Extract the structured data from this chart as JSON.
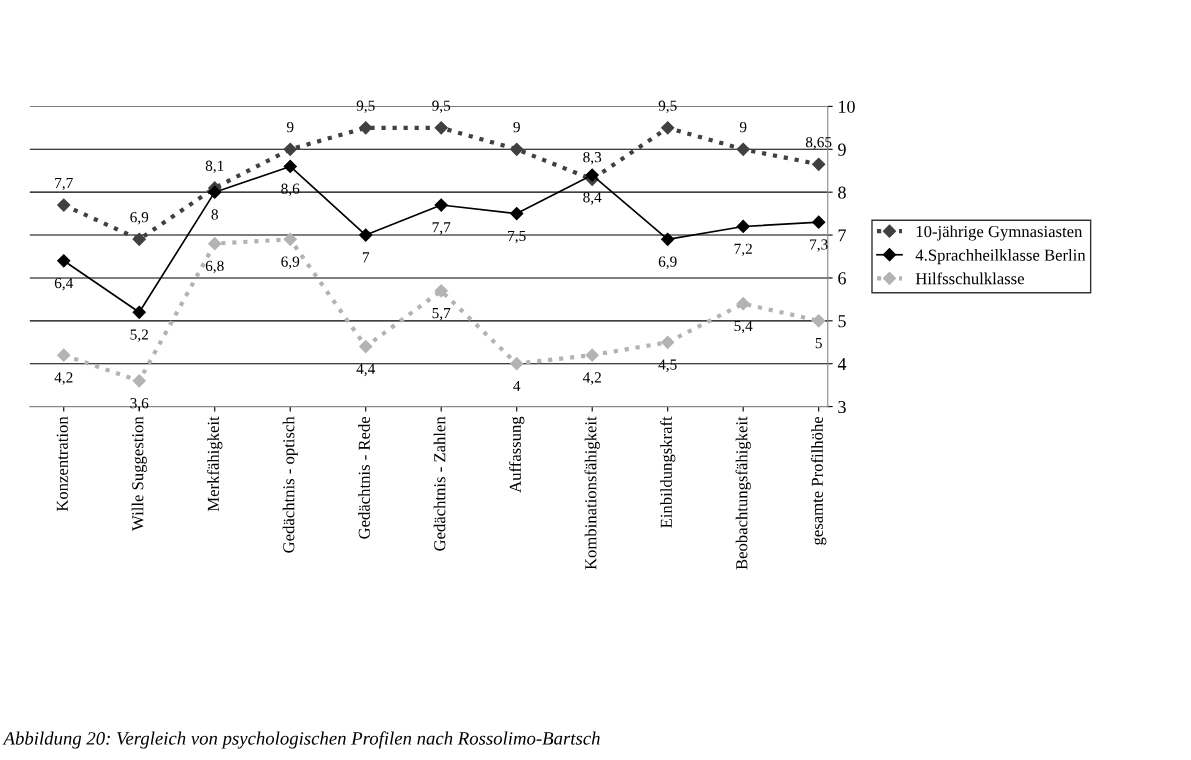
{
  "chart_data": {
    "type": "line",
    "categories": [
      "Konzentration",
      "Wille Suggestion",
      "Merkfähigkeit",
      "Gedächtnis - optisch",
      "Gedächtnis - Rede",
      "Gedächtnis - Zahlen",
      "Auffassung",
      "Kombinationsfähigkeit",
      "Einbildungskraft",
      "Beobachtungsfähigkeit",
      "gesamte Profilhöhe"
    ],
    "series": [
      {
        "name": "10-jährige Gymnasiasten",
        "color": "#404040",
        "line_style": "dotted",
        "values": [
          7.7,
          6.9,
          8.1,
          9,
          9.5,
          9.5,
          9,
          8.3,
          9.5,
          9,
          8.65
        ],
        "value_labels": [
          "7,7",
          "6,9",
          "8,1",
          "9",
          "9,5",
          "9,5",
          "9",
          "8,3",
          "9,5",
          "9",
          "8,65"
        ]
      },
      {
        "name": "4.Sprachheilklasse Berlin",
        "color": "#000000",
        "line_style": "solid",
        "values": [
          6.4,
          5.2,
          8,
          8.6,
          7,
          7.7,
          7.5,
          8.4,
          6.9,
          7.2,
          7.3
        ],
        "value_labels": [
          "6,4",
          "5,2",
          "8",
          "8,6",
          "7",
          "7,7",
          "7,5",
          "8,4",
          "6,9",
          "7,2",
          "7,3"
        ]
      },
      {
        "name": "Hilfsschulklasse",
        "color": "#b3b3b3",
        "line_style": "dotted",
        "values": [
          4.2,
          3.6,
          6.8,
          6.9,
          4.4,
          5.7,
          4,
          4.2,
          4.5,
          5.4,
          5
        ],
        "value_labels": [
          "4,2",
          "3,6",
          "6,8",
          "6,9",
          "4,4",
          "5,7",
          "4",
          "4,2",
          "4,5",
          "5,4",
          "5"
        ]
      }
    ],
    "ylim": [
      3,
      10
    ],
    "yticks": [
      3,
      4,
      5,
      6,
      7,
      8,
      9,
      10
    ],
    "grid": "y",
    "legend": "right",
    "marker": "diamond",
    "annotations": [
      "Abbildung 20: Vergleich von psychologischen Profilen nach Rossolimo-Bartsch"
    ]
  }
}
